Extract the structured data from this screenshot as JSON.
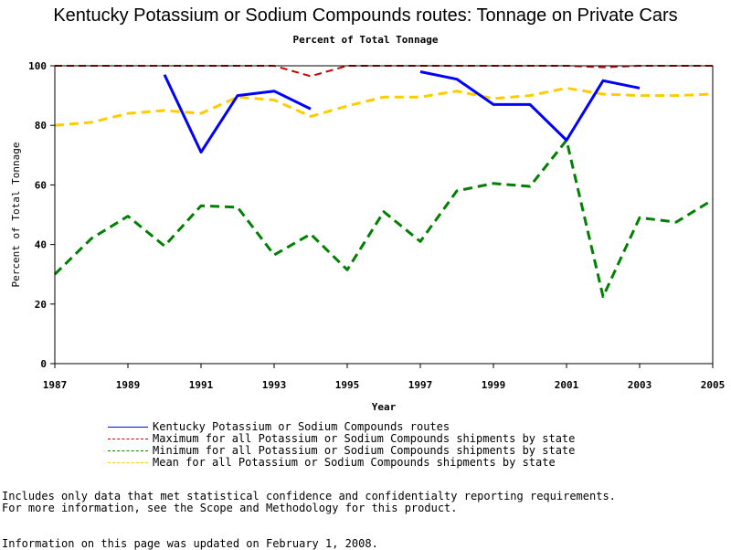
{
  "chart_data": {
    "type": "line",
    "title": "Kentucky Potassium or Sodium Compounds routes: Tonnage on Private Cars",
    "subtitle": "Percent of Total Tonnage",
    "xlabel": "Year",
    "ylabel": "Percent of Total Tonnage",
    "xlim": [
      1987,
      2005
    ],
    "ylim": [
      0,
      100
    ],
    "x_ticks": [
      "1987",
      "1989",
      "1991",
      "1993",
      "1995",
      "1997",
      "1999",
      "2001",
      "2003",
      "2005"
    ],
    "y_ticks": [
      "0",
      "20",
      "40",
      "60",
      "80",
      "100"
    ],
    "x": [
      1987,
      1988,
      1989,
      1990,
      1991,
      1992,
      1993,
      1994,
      1995,
      1996,
      1997,
      1998,
      1999,
      2000,
      2001,
      2002,
      2003,
      2004,
      2005
    ],
    "series": [
      {
        "name": "Kentucky Potassium or Sodium Compounds routes",
        "color": "#0000ff",
        "dash": "solid",
        "values": [
          null,
          null,
          null,
          97,
          71,
          90,
          91.5,
          85.5,
          null,
          null,
          98,
          95.5,
          87,
          87,
          75,
          95,
          92.5,
          null,
          null
        ]
      },
      {
        "name": "Maximum for all Potassium or Sodium Compounds shipments by state",
        "color": "#cc0000",
        "dash": "dashed",
        "values": [
          100,
          100,
          100,
          100,
          100,
          100,
          100,
          96.5,
          100,
          100,
          100,
          100,
          100,
          100,
          100,
          99.5,
          100,
          100,
          100
        ]
      },
      {
        "name": "Minimum for all Potassium or Sodium Compounds shipments by state",
        "color": "#008000",
        "dash": "dashed",
        "values": [
          30,
          42,
          49.5,
          39.5,
          53,
          52.5,
          36.5,
          43.5,
          31.5,
          51,
          41,
          58,
          60.5,
          59.5,
          75,
          22.5,
          49,
          47.5,
          55
        ]
      },
      {
        "name": "Mean for all Potassium or Sodium Compounds shipments by state",
        "color": "#ffcc00",
        "dash": "dashed",
        "values": [
          80,
          81,
          84,
          85,
          84,
          89.5,
          88.5,
          83,
          86.5,
          89.5,
          89.5,
          91.5,
          89,
          90,
          92.5,
          90.5,
          90,
          90,
          90.5
        ]
      }
    ],
    "legend_position": "bottom"
  },
  "footnotes": {
    "line1": "Includes only data that met statistical confidence and confidentialty reporting requirements.",
    "line2": "For more information, see the Scope and Methodology for this product.",
    "line3": "Information on this page was updated on February 1, 2008."
  }
}
